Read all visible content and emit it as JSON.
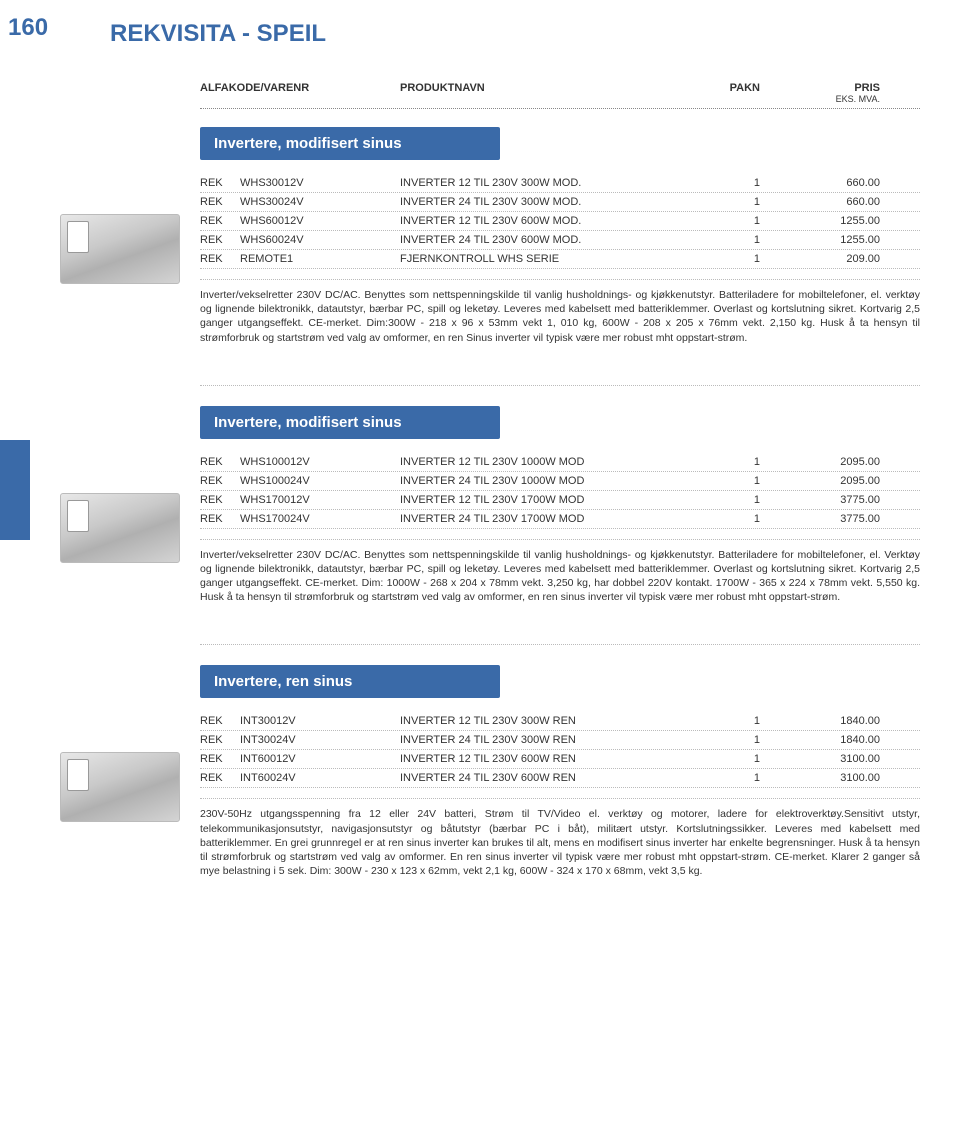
{
  "page": {
    "number": "160",
    "title": "REKVISITA - SPEIL"
  },
  "header": {
    "col1": "ALFAKODE/VARENR",
    "col2": "PRODUKTNAVN",
    "col3": "PAKN",
    "col4": "PRIS",
    "col4_sub": "EKS. MVA."
  },
  "colors": {
    "accent": "#3a6aa8",
    "text": "#333333",
    "bg": "#ffffff"
  },
  "sections": [
    {
      "title": "Invertere, modifisert sinus",
      "rows": [
        {
          "brand": "REK",
          "sku": "WHS30012V",
          "name": "INVERTER 12 TIL 230V 300W MOD.",
          "pakn": "1",
          "pris": "660.00"
        },
        {
          "brand": "REK",
          "sku": "WHS30024V",
          "name": "INVERTER 24 TIL 230V 300W MOD.",
          "pakn": "1",
          "pris": "660.00"
        },
        {
          "brand": "REK",
          "sku": "WHS60012V",
          "name": "INVERTER 12 TIL 230V 600W MOD.",
          "pakn": "1",
          "pris": "1255.00"
        },
        {
          "brand": "REK",
          "sku": "WHS60024V",
          "name": "INVERTER 24 TIL 230V 600W MOD.",
          "pakn": "1",
          "pris": "1255.00"
        },
        {
          "brand": "REK",
          "sku": "REMOTE1",
          "name": "FJERNKONTROLL WHS SERIE",
          "pakn": "1",
          "pris": "209.00"
        }
      ],
      "desc": "Inverter/vekselretter 230V DC/AC. Benyttes som nettspenningskilde til vanlig husholdnings- og kjøkkenutstyr. Batteriladere for mobiltelefoner, el. verktøy og lignende bilektronikk, datautstyr, bærbar PC, spill og leketøy. Leveres med kabelsett med batteriklemmer. Overlast og kortslutning sikret. Kortvarig 2,5 ganger utgangseffekt. CE-merket. Dim:300W - 218 x 96 x 53mm vekt 1, 010 kg, 600W - 208 x 205 x 76mm vekt. 2,150 kg. Husk å ta hensyn til strømforbruk og startstrøm ved valg av omformer, en ren Sinus inverter vil typisk være mer robust mht oppstart-strøm."
    },
    {
      "title": "Invertere, modifisert sinus",
      "rows": [
        {
          "brand": "REK",
          "sku": "WHS100012V",
          "name": "INVERTER 12 TIL 230V 1000W MOD",
          "pakn": "1",
          "pris": "2095.00"
        },
        {
          "brand": "REK",
          "sku": "WHS100024V",
          "name": "INVERTER 24 TIL 230V 1000W MOD",
          "pakn": "1",
          "pris": "2095.00"
        },
        {
          "brand": "REK",
          "sku": "WHS170012V",
          "name": "INVERTER 12 TIL 230V 1700W MOD",
          "pakn": "1",
          "pris": "3775.00"
        },
        {
          "brand": "REK",
          "sku": "WHS170024V",
          "name": "INVERTER 24 TIL 230V 1700W MOD",
          "pakn": "1",
          "pris": "3775.00"
        }
      ],
      "desc": "Inverter/vekselretter 230V DC/AC. Benyttes som nettspenningskilde til vanlig husholdnings- og kjøkkenutstyr. Batteriladere for mobiltelefoner, el. Verktøy og lignende bilektronikk, datautstyr, bærbar PC, spill og leketøy. Leveres med kabelsett med batteriklemmer. Overlast og kortslutning sikret. Kortvarig 2,5 ganger utgangseffekt. CE-merket. Dim: 1000W - 268 x 204 x 78mm vekt. 3,250 kg, har dobbel 220V kontakt. 1700W - 365 x 224 x 78mm vekt. 5,550 kg. Husk å ta hensyn til strømforbruk og startstrøm ved valg av omformer, en ren sinus inverter vil typisk være mer robust mht oppstart-strøm."
    },
    {
      "title": "Invertere, ren sinus",
      "rows": [
        {
          "brand": "REK",
          "sku": "INT30012V",
          "name": "INVERTER 12 TIL 230V  300W REN",
          "pakn": "1",
          "pris": "1840.00"
        },
        {
          "brand": "REK",
          "sku": "INT30024V",
          "name": "INVERTER 24 TIL 230V  300W REN",
          "pakn": "1",
          "pris": "1840.00"
        },
        {
          "brand": "REK",
          "sku": "INT60012V",
          "name": "INVERTER 12 TIL 230V  600W REN",
          "pakn": "1",
          "pris": "3100.00"
        },
        {
          "brand": "REK",
          "sku": "INT60024V",
          "name": "INVERTER 24 TIL 230V  600W REN",
          "pakn": "1",
          "pris": "3100.00"
        }
      ],
      "desc": "230V-50Hz utgangsspenning fra 12 eller 24V batteri, Strøm til TV/Video el. verktøy og motorer, ladere for elektroverktøy.Sensitivt utstyr, telekommunikasjonsutstyr, navigasjonsutstyr og båtutstyr (bærbar PC i båt), militært utstyr. Kortslutningssikker. Leveres med kabelsett med batteriklemmer. En grei grunnregel er at ren sinus inverter kan brukes til alt, mens en modifisert sinus inverter har enkelte begrensninger. Husk å ta hensyn til strømforbruk og startstrøm ved valg av omformer. En ren sinus inverter vil typisk være mer robust mht oppstart-strøm. CE-merket. Klarer 2 ganger så mye belastning i 5 sek. Dim: 300W - 230 x 123 x 62mm, vekt 2,1 kg, 600W - 324 x 170 x 68mm, vekt 3,5 kg."
    }
  ]
}
